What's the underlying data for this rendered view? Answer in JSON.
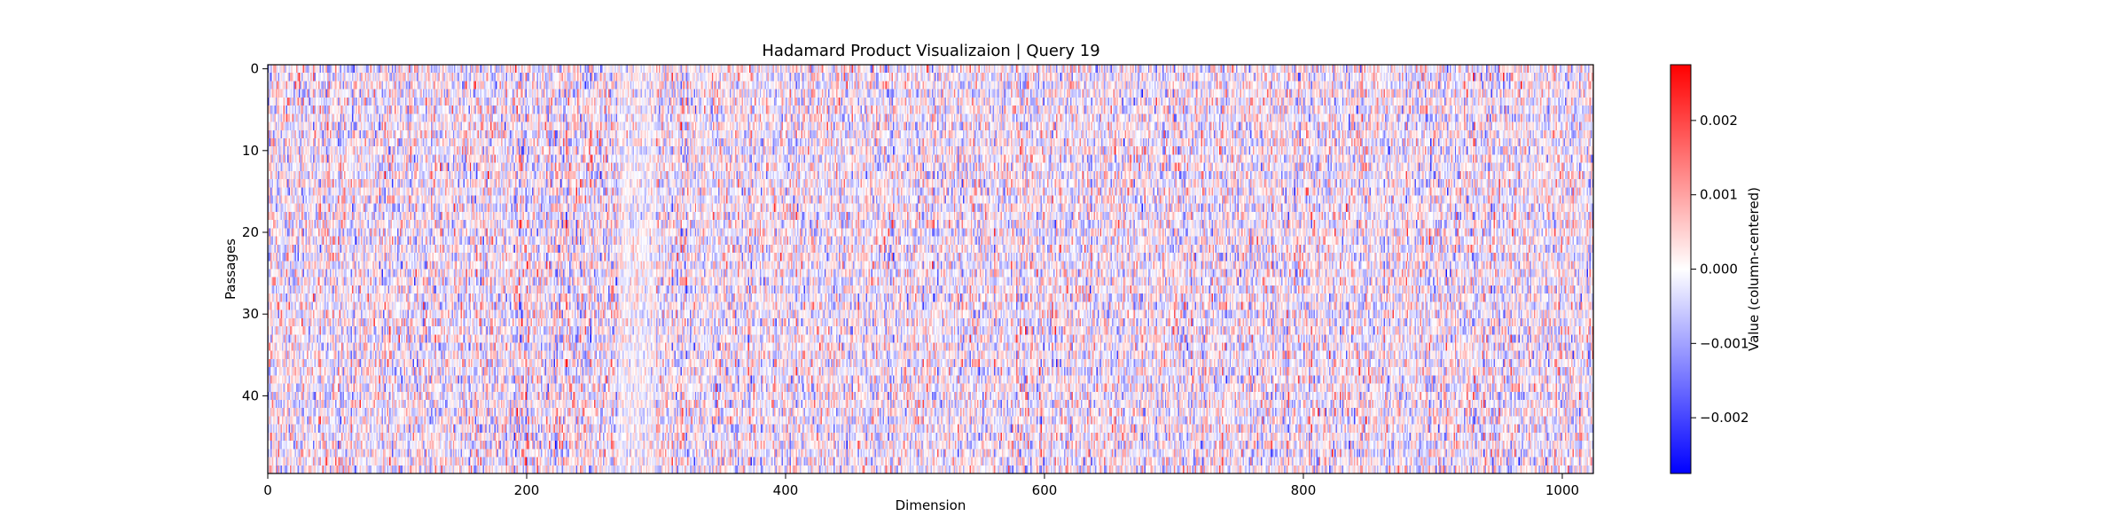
{
  "chart_data": {
    "type": "heatmap",
    "title": "Hadamard Product Visualizaion | Query 19",
    "xlabel": "Dimension",
    "ylabel": "Passages",
    "n_rows": 50,
    "n_cols": 1024,
    "xlim": [
      0,
      1024
    ],
    "ylim": [
      0,
      50
    ],
    "x_ticks": [
      0,
      200,
      400,
      600,
      800,
      1000
    ],
    "x_tick_labels": [
      "0",
      "200",
      "400",
      "600",
      "800",
      "1000"
    ],
    "y_ticks": [
      0,
      10,
      20,
      30,
      40
    ],
    "y_tick_labels": [
      "0",
      "10",
      "20",
      "30",
      "40"
    ],
    "colormap": "bwr",
    "colormap_colors": {
      "low": "#0000ff",
      "mid": "#ffffff",
      "high": "#ff0000"
    },
    "value_range": [
      -0.00275,
      0.00275
    ],
    "colorbar": {
      "label": "Value (column-centered)",
      "ticks": [
        -0.002,
        -0.001,
        0.0,
        0.001,
        0.002
      ],
      "tick_labels": [
        "−0.002",
        "−0.001",
        "0.000",
        "0.001",
        "0.002"
      ]
    }
  }
}
